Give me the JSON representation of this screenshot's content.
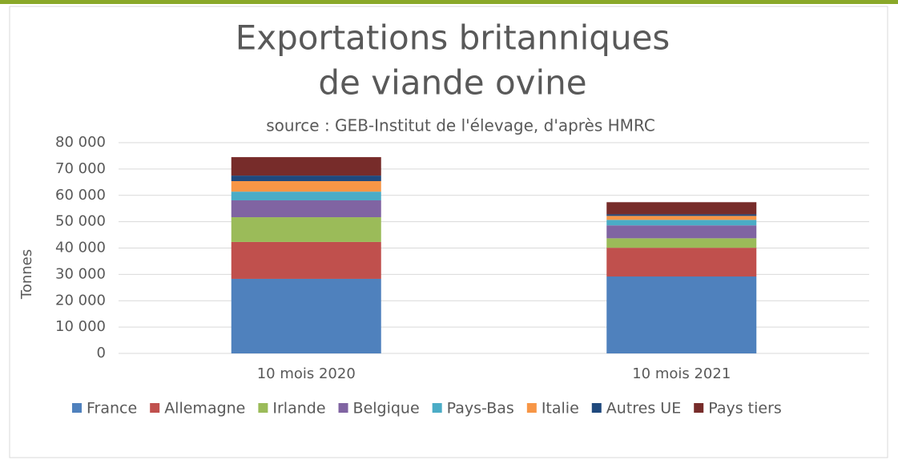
{
  "chart_data": {
    "type": "stacked_bar",
    "title": [
      "Exportations britanniques",
      "de viande ovine"
    ],
    "subtitle": "source : GEB-Institut de l'élevage, d'après HMRC",
    "y_label": "Tonnes",
    "categories": [
      "10 mois 2020",
      "10 mois 2021"
    ],
    "series": [
      {
        "name": "France",
        "color": "#4f81bd",
        "values": [
          28300,
          29200
        ]
      },
      {
        "name": "Allemagne",
        "color": "#c0504d",
        "values": [
          14000,
          10900
        ]
      },
      {
        "name": "Irlande",
        "color": "#9bbb59",
        "values": [
          9400,
          3600
        ]
      },
      {
        "name": "Belgique",
        "color": "#8064a2",
        "values": [
          6400,
          4900
        ]
      },
      {
        "name": "Pays-Bas",
        "color": "#4bacc6",
        "values": [
          3300,
          2100
        ]
      },
      {
        "name": "Italie",
        "color": "#f79646",
        "values": [
          4000,
          1500
        ]
      },
      {
        "name": "Autres UE",
        "color": "#1f497d",
        "values": [
          2100,
          600
        ]
      },
      {
        "name": "Pays tiers",
        "color": "#772c2a",
        "values": [
          7000,
          4600
        ]
      }
    ],
    "ylim": [
      0,
      80000
    ],
    "yticks": [
      0,
      {
        "value": 10000,
        "label": "10 000"
      },
      {
        "value": 20000,
        "label": "20 000"
      },
      {
        "value": 30000,
        "label": "30 000"
      },
      {
        "value": 40000,
        "label": "40 000"
      },
      {
        "value": 50000,
        "label": "50 000"
      },
      {
        "value": 60000,
        "label": "60 000"
      },
      {
        "value": 70000,
        "label": "70 000"
      },
      {
        "value": 80000,
        "label": "80 000"
      }
    ],
    "grid": true,
    "legend": "bottom"
  }
}
